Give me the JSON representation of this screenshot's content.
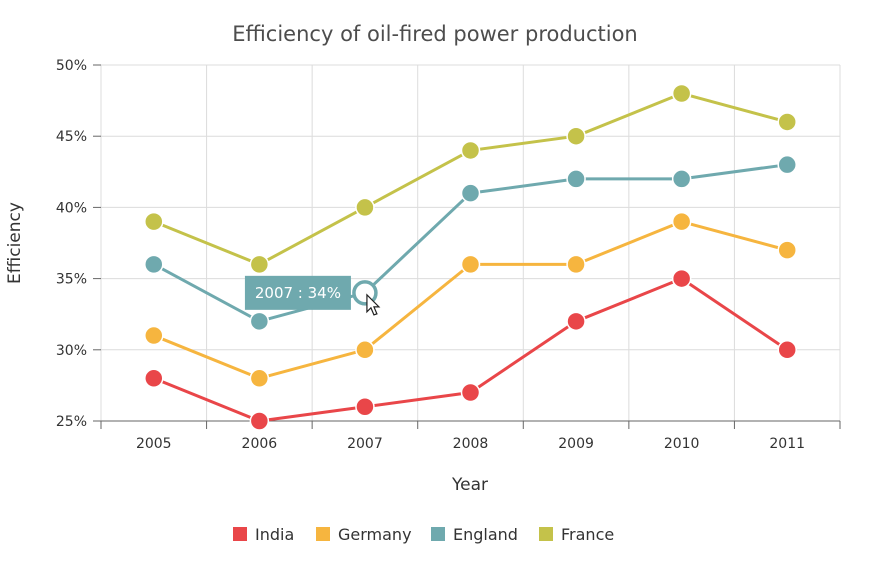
{
  "chart_data": {
    "type": "line",
    "title": "Efficiency of oil-fired power production",
    "xlabel": "Year",
    "ylabel": "Efficiency",
    "x": [
      "2005",
      "2006",
      "2007",
      "2008",
      "2009",
      "2010",
      "2011"
    ],
    "ylim": [
      25,
      50
    ],
    "yticks": [
      "25%",
      "30%",
      "35%",
      "40%",
      "45%",
      "50%"
    ],
    "y_tick_values": [
      25,
      30,
      35,
      40,
      45,
      50
    ],
    "grid": true,
    "legend_position": "bottom",
    "series": [
      {
        "name": "India",
        "color": "#e94649",
        "values": [
          28,
          25,
          26,
          27,
          32,
          35,
          30
        ]
      },
      {
        "name": "Germany",
        "color": "#f6b53f",
        "values": [
          31,
          28,
          30,
          36,
          36,
          39,
          37
        ]
      },
      {
        "name": "England",
        "color": "#6fa9ae",
        "values": [
          36,
          32,
          34,
          41,
          42,
          42,
          43
        ]
      },
      {
        "name": "France",
        "color": "#c4c24a",
        "values": [
          39,
          36,
          40,
          44,
          45,
          48,
          46
        ]
      }
    ],
    "tooltip": {
      "text": "2007 : 34%",
      "series": "England",
      "x": "2007",
      "y": 34
    }
  }
}
